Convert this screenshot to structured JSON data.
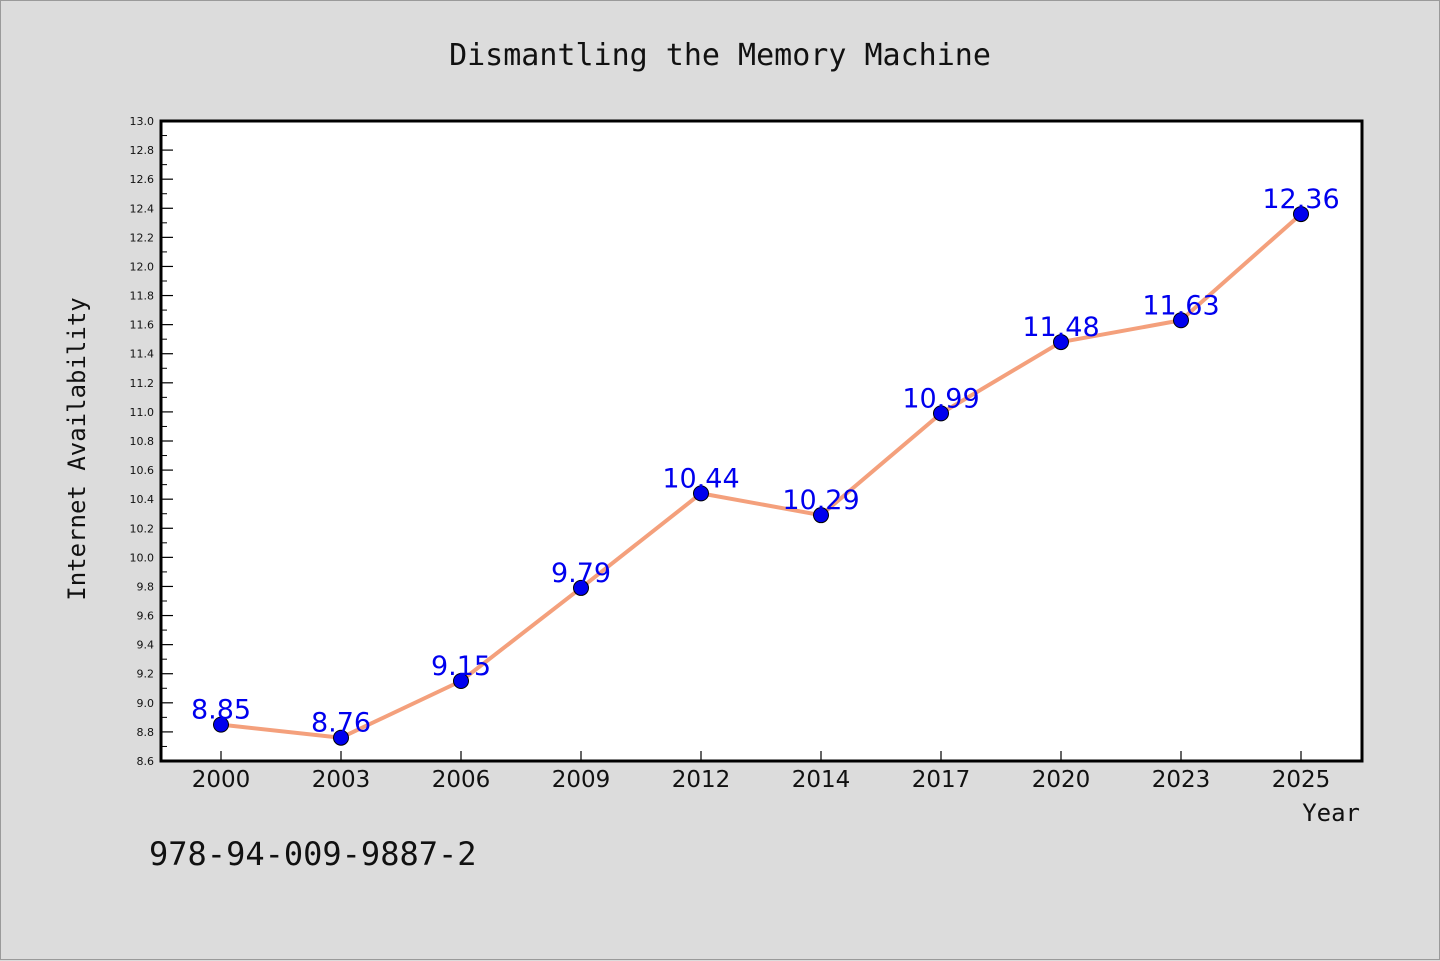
{
  "chart_data": {
    "type": "line",
    "title": "Dismantling the Memory Machine",
    "xlabel": "Year",
    "ylabel": "Internet Availability",
    "ylim": [
      8.6,
      13.0
    ],
    "yticks": [
      "8.6",
      "8.8",
      "9.0",
      "9.2",
      "9.4",
      "9.6",
      "9.8",
      "10.0",
      "10.2",
      "10.4",
      "10.6",
      "10.8",
      "11.0",
      "11.2",
      "11.4",
      "11.6",
      "11.8",
      "12.0",
      "12.2",
      "12.4",
      "12.6",
      "12.8",
      "13.0"
    ],
    "categories": [
      "2000",
      "2003",
      "2006",
      "2009",
      "2012",
      "2014",
      "2017",
      "2020",
      "2023",
      "2025"
    ],
    "series": [
      {
        "values": [
          8.85,
          8.76,
          9.15,
          9.79,
          10.44,
          10.29,
          10.99,
          11.48,
          11.63,
          12.36
        ],
        "labels": [
          "8.85",
          "8.76",
          "9.15",
          "9.79",
          "10.44",
          "10.29",
          "10.99",
          "11.48",
          "11.63",
          "12.36"
        ],
        "line_color": "#f4a07c",
        "marker_color": "#0000ee",
        "label_color": "#0000ee"
      }
    ],
    "grid": false,
    "legend": "none"
  },
  "footer": {
    "isbn": "978-94-009-9887-2"
  }
}
